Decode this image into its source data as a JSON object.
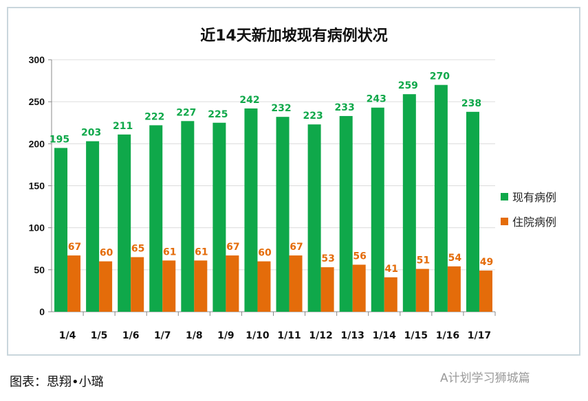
{
  "chart_data": {
    "type": "bar",
    "title": "近14天新加坡现有病例状况",
    "categories": [
      "1/4",
      "1/5",
      "1/6",
      "1/7",
      "1/8",
      "1/9",
      "1/10",
      "1/11",
      "1/12",
      "1/13",
      "1/14",
      "1/15",
      "1/16",
      "1/17"
    ],
    "series": [
      {
        "name": "现有病例",
        "color": "#0fa84a",
        "values": [
          195,
          203,
          211,
          222,
          227,
          225,
          242,
          232,
          223,
          233,
          243,
          259,
          270,
          238
        ]
      },
      {
        "name": "住院病例",
        "color": "#e46c0a",
        "values": [
          67,
          60,
          65,
          61,
          61,
          67,
          60,
          67,
          53,
          56,
          41,
          51,
          54,
          49
        ]
      }
    ],
    "ylim": [
      0,
      300
    ],
    "yticks": [
      0,
      50,
      100,
      150,
      200,
      250,
      300
    ],
    "grid": true,
    "legend": "right"
  },
  "caption": "图表：思翔•小璐",
  "watermark": "A计划学习狮城篇"
}
